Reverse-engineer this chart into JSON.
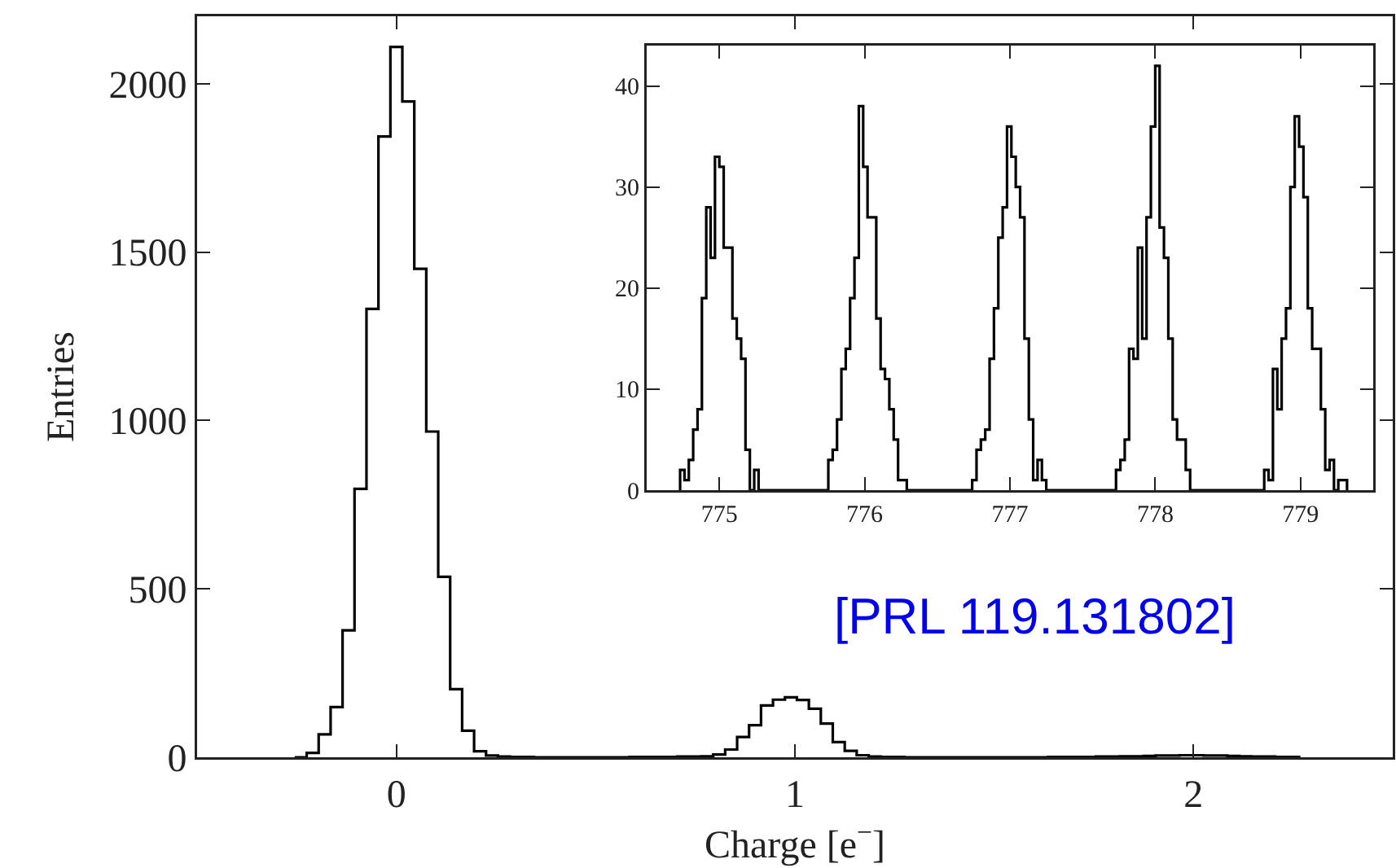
{
  "chart_data": [
    {
      "type": "histogram",
      "xlabel": "Charge [e$^{−}$]",
      "ylabel": "Entries",
      "color": "#000000",
      "bins": [
        -0.255,
        -0.225,
        -0.195,
        -0.165,
        -0.135,
        -0.105,
        -0.075,
        -0.045,
        -0.015,
        0.015,
        0.045,
        0.075,
        0.105,
        0.135,
        0.165,
        0.195,
        0.225,
        0.255,
        0.285,
        0.315,
        0.345,
        0.375,
        0.405,
        0.435,
        0.465,
        0.495,
        0.525,
        0.555,
        0.585,
        0.615,
        0.645,
        0.675,
        0.705,
        0.735,
        0.765,
        0.795,
        0.825,
        0.855,
        0.885,
        0.915,
        0.945,
        0.975,
        1.005,
        1.035,
        1.065,
        1.095,
        1.125,
        1.155,
        1.185,
        1.215,
        1.245,
        1.275,
        1.305,
        1.335,
        1.365,
        1.395,
        1.425,
        1.455,
        1.485,
        1.515,
        1.545,
        1.575,
        1.605,
        1.635,
        1.665,
        1.695,
        1.725,
        1.755,
        1.785,
        1.815,
        1.845,
        1.875,
        1.905,
        1.935,
        1.965,
        1.995,
        2.025,
        2.055,
        2.085,
        2.115,
        2.145,
        2.175,
        2.205,
        2.235,
        2.265
      ],
      "values": [
        0,
        13,
        68,
        149,
        377,
        797,
        1331,
        1843,
        2109,
        1947,
        1450,
        967,
        536,
        202,
        79,
        18,
        5,
        2,
        1,
        1,
        0,
        0,
        0,
        0,
        0,
        0,
        0,
        0,
        1,
        1,
        1,
        1,
        2,
        2,
        3,
        8,
        23,
        60,
        95,
        154,
        171,
        178,
        170,
        144,
        100,
        45,
        19,
        6,
        2,
        1,
        1,
        0,
        0,
        0,
        0,
        0,
        0,
        0,
        0,
        0,
        0,
        0,
        0,
        1,
        1,
        1,
        1,
        2,
        2,
        3,
        3,
        4,
        5,
        5,
        6,
        6,
        5,
        5,
        4,
        3,
        2,
        2,
        1,
        1
      ],
      "xlim": [
        -0.5,
        2.5
      ],
      "ylim": [
        0,
        2200
      ],
      "xticks": [
        0,
        1,
        2
      ],
      "yticks": [
        0,
        500,
        1000,
        1500,
        2000
      ],
      "annotations": [
        "[PRL 119.131802]"
      ]
    },
    {
      "type": "histogram",
      "color": "#000000",
      "bins": [
        774.73,
        774.76,
        774.79,
        774.82,
        774.85,
        774.88,
        774.91,
        774.94,
        774.97,
        775.0,
        775.03,
        775.06,
        775.09,
        775.12,
        775.15,
        775.18,
        775.21,
        775.24,
        775.27,
        775.3,
        775.33,
        775.36,
        775.39,
        775.42,
        775.45,
        775.48,
        775.51,
        775.54,
        775.57,
        775.6,
        775.63,
        775.66,
        775.69,
        775.72,
        775.75,
        775.78,
        775.81,
        775.84,
        775.87,
        775.9,
        775.93,
        775.96,
        775.99,
        776.02,
        776.05,
        776.08,
        776.11,
        776.14,
        776.17,
        776.2,
        776.23,
        776.26,
        776.29,
        776.32,
        776.35,
        776.38,
        776.41,
        776.44,
        776.47,
        776.5,
        776.53,
        776.56,
        776.59,
        776.62,
        776.65,
        776.68,
        776.71,
        776.74,
        776.77,
        776.8,
        776.83,
        776.86,
        776.89,
        776.92,
        776.95,
        776.98,
        777.01,
        777.04,
        777.07,
        777.1,
        777.13,
        777.16,
        777.19,
        777.22,
        777.25,
        777.28,
        777.31,
        777.34,
        777.37,
        777.4,
        777.43,
        777.46,
        777.49,
        777.52,
        777.55,
        777.58,
        777.61,
        777.64,
        777.67,
        777.7,
        777.73,
        777.76,
        777.79,
        777.82,
        777.85,
        777.88,
        777.91,
        777.94,
        777.97,
        778.0,
        778.03,
        778.06,
        778.09,
        778.12,
        778.15,
        778.18,
        778.21,
        778.24,
        778.27,
        778.3,
        778.33,
        778.36,
        778.39,
        778.42,
        778.45,
        778.48,
        778.51,
        778.54,
        778.57,
        778.6,
        778.63,
        778.66,
        778.69,
        778.72,
        778.75,
        778.78,
        778.81,
        778.84,
        778.87,
        778.9,
        778.93,
        778.96,
        778.99,
        779.02,
        779.05,
        779.08,
        779.11,
        779.14,
        779.17,
        779.2,
        779.23,
        779.26,
        779.29,
        779.32
      ],
      "values": [
        2,
        1,
        3,
        6,
        8,
        19,
        28,
        23,
        33,
        32,
        24,
        24,
        17,
        15,
        13,
        4,
        0,
        2,
        0,
        0,
        0,
        0,
        0,
        0,
        0,
        0,
        0,
        0,
        0,
        0,
        0,
        0,
        0,
        0,
        3,
        4,
        7,
        12,
        14,
        19,
        23,
        38,
        32,
        27,
        27,
        17,
        12,
        11,
        8,
        5,
        1,
        1,
        0,
        0,
        0,
        0,
        0,
        0,
        0,
        0,
        0,
        0,
        0,
        0,
        0,
        0,
        0,
        1,
        4,
        5,
        6,
        13,
        18,
        25,
        28,
        36,
        33,
        30,
        27,
        15,
        7,
        1,
        3,
        1,
        0,
        0,
        0,
        0,
        0,
        0,
        0,
        0,
        0,
        0,
        0,
        0,
        0,
        0,
        0,
        0,
        2,
        3,
        5,
        14,
        13,
        24,
        15,
        27,
        36,
        42,
        26,
        23,
        15,
        7,
        5,
        5,
        2,
        0,
        0,
        0,
        0,
        0,
        0,
        0,
        0,
        0,
        0,
        0,
        0,
        0,
        0,
        0,
        0,
        0,
        2,
        1,
        12,
        8,
        15,
        18,
        30,
        37,
        34,
        29,
        18,
        14,
        14,
        8,
        2,
        3,
        0,
        1,
        1
      ],
      "xlim": [
        774.5,
        779.5
      ],
      "ylim": [
        0,
        44
      ],
      "xticks": [
        775,
        776,
        777,
        778,
        779
      ],
      "yticks": [
        0,
        10,
        20,
        30,
        40
      ]
    }
  ]
}
